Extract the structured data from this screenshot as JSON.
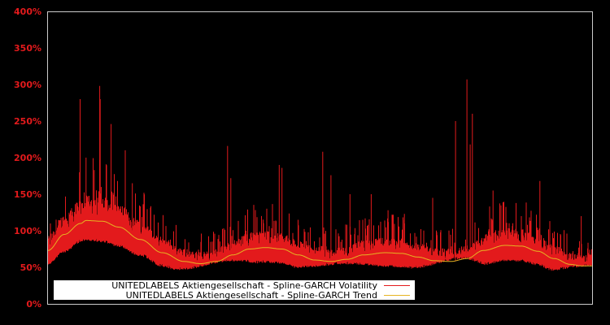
{
  "chart_data": {
    "type": "line",
    "title": "",
    "xlabel": "",
    "ylabel": "",
    "ylim": [
      0,
      400
    ],
    "y_ticks": [
      "0%",
      "50%",
      "100%",
      "150%",
      "200%",
      "250%",
      "300%",
      "350%",
      "400%"
    ],
    "grid": false,
    "legend_position": "lower-left",
    "background": "#000000",
    "axis_color": "#cccccc",
    "tick_label_color": "#e31a1c",
    "series": [
      {
        "name": "UNITEDLABELS Aktiengesellschaft - Spline-GARCH Volatility",
        "color": "#e31a1c",
        "style": "dense spiky line",
        "baseline_min_approx": [
          [
            0,
            58
          ],
          [
            0.07,
            90
          ],
          [
            0.24,
            50
          ],
          [
            0.34,
            62
          ],
          [
            0.46,
            53
          ],
          [
            0.55,
            58
          ],
          [
            0.67,
            52
          ],
          [
            0.76,
            65
          ],
          [
            0.86,
            43
          ],
          [
            1.0,
            55
          ]
        ],
        "notable_peaks": [
          {
            "x_frac": 0.058,
            "value": 180
          },
          {
            "x_frac": 0.058,
            "value": 163
          },
          {
            "x_frac": 0.058,
            "value": 150
          },
          {
            "x_frac": 0.058,
            "value": 130
          },
          {
            "x_frac": 0.058,
            "value": 110
          },
          {
            "x_frac": 0.059,
            "value": 280
          },
          {
            "x_frac": 0.07,
            "value": 200
          },
          {
            "x_frac": 0.085,
            "value": 183
          },
          {
            "x_frac": 0.095,
            "value": 298
          },
          {
            "x_frac": 0.096,
            "value": 280
          },
          {
            "x_frac": 0.116,
            "value": 246
          },
          {
            "x_frac": 0.142,
            "value": 210
          },
          {
            "x_frac": 0.155,
            "value": 165
          },
          {
            "x_frac": 0.195,
            "value": 122
          },
          {
            "x_frac": 0.33,
            "value": 216
          },
          {
            "x_frac": 0.336,
            "value": 172
          },
          {
            "x_frac": 0.425,
            "value": 190
          },
          {
            "x_frac": 0.43,
            "value": 186
          },
          {
            "x_frac": 0.505,
            "value": 208
          },
          {
            "x_frac": 0.52,
            "value": 176
          },
          {
            "x_frac": 0.555,
            "value": 150
          },
          {
            "x_frac": 0.594,
            "value": 150
          },
          {
            "x_frac": 0.625,
            "value": 128
          },
          {
            "x_frac": 0.655,
            "value": 123
          },
          {
            "x_frac": 0.707,
            "value": 145
          },
          {
            "x_frac": 0.749,
            "value": 250
          },
          {
            "x_frac": 0.77,
            "value": 307
          },
          {
            "x_frac": 0.78,
            "value": 260
          },
          {
            "x_frac": 0.776,
            "value": 218
          },
          {
            "x_frac": 0.818,
            "value": 155
          },
          {
            "x_frac": 0.904,
            "value": 168
          },
          {
            "x_frac": 0.98,
            "value": 120
          }
        ]
      },
      {
        "name": "UNITEDLABELS Aktiengesellschaft - Spline-GARCH Trend",
        "color": "#e6b422",
        "style": "smooth line",
        "points": [
          [
            0.0,
            73
          ],
          [
            0.03,
            95
          ],
          [
            0.06,
            110
          ],
          [
            0.07,
            114
          ],
          [
            0.1,
            113
          ],
          [
            0.13,
            105
          ],
          [
            0.17,
            88
          ],
          [
            0.21,
            70
          ],
          [
            0.25,
            58
          ],
          [
            0.28,
            55
          ],
          [
            0.31,
            58
          ],
          [
            0.34,
            67
          ],
          [
            0.37,
            75
          ],
          [
            0.4,
            77
          ],
          [
            0.43,
            75
          ],
          [
            0.46,
            67
          ],
          [
            0.49,
            60
          ],
          [
            0.52,
            58
          ],
          [
            0.55,
            61
          ],
          [
            0.58,
            67
          ],
          [
            0.62,
            70
          ],
          [
            0.65,
            69
          ],
          [
            0.68,
            64
          ],
          [
            0.71,
            59
          ],
          [
            0.74,
            58
          ],
          [
            0.77,
            62
          ],
          [
            0.8,
            73
          ],
          [
            0.84,
            80
          ],
          [
            0.87,
            79
          ],
          [
            0.9,
            72
          ],
          [
            0.93,
            62
          ],
          [
            0.96,
            54
          ],
          [
            0.98,
            52
          ],
          [
            1.0,
            52
          ]
        ]
      }
    ]
  },
  "legend": {
    "items": [
      {
        "label": "UNITEDLABELS Aktiengesellschaft - Spline-GARCH Volatility",
        "color": "#e31a1c"
      },
      {
        "label": "UNITEDLABELS Aktiengesellschaft - Spline-GARCH Trend",
        "color": "#e6b422"
      }
    ]
  }
}
